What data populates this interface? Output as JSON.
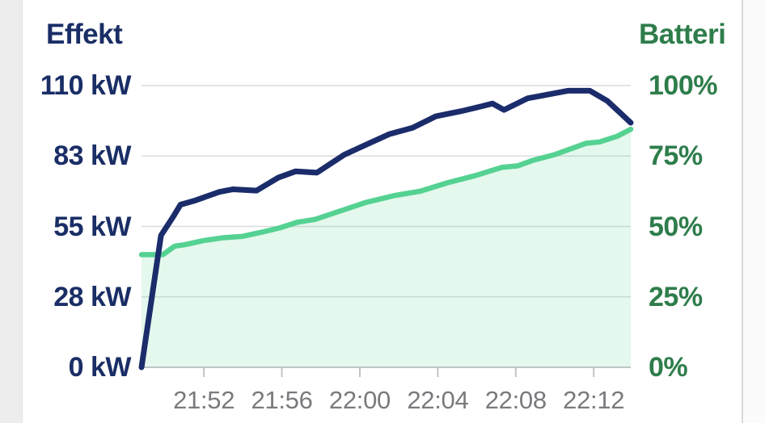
{
  "chart_data": {
    "type": "line",
    "dual_axis": true,
    "time_base": "21:48",
    "x_axis": {
      "start": 0.8,
      "end": 25.9,
      "ticks": [
        {
          "label": "21:52",
          "t": 4
        },
        {
          "label": "21:56",
          "t": 8
        },
        {
          "label": "22:00",
          "t": 12
        },
        {
          "label": "22:04",
          "t": 16
        },
        {
          "label": "22:08",
          "t": 20
        },
        {
          "label": "22:12",
          "t": 24
        }
      ]
    },
    "left_axis": {
      "title": "Effekt",
      "unit": "kW",
      "min": 0,
      "max": 110,
      "tick_labels": [
        "110 kW",
        "83 kW",
        "55 kW",
        "28 kW",
        "0 kW"
      ]
    },
    "right_axis": {
      "title": "Batteri",
      "unit": "%",
      "min": 0,
      "max": 100,
      "tick_labels": [
        "100%",
        "75%",
        "50%",
        "25%",
        "0%"
      ]
    },
    "series": [
      {
        "name": "Effekt",
        "axis": "left",
        "color": "#1b2c6b",
        "points": [
          [
            0.8,
            0
          ],
          [
            1.8,
            51.5
          ],
          [
            2.4,
            58.5
          ],
          [
            2.8,
            63.5
          ],
          [
            3.5,
            65
          ],
          [
            4.8,
            68.5
          ],
          [
            5.5,
            69.5
          ],
          [
            6.7,
            69
          ],
          [
            7.8,
            74
          ],
          [
            8.7,
            76.5
          ],
          [
            9.8,
            76
          ],
          [
            11.2,
            83
          ],
          [
            12.2,
            86.5
          ],
          [
            13.5,
            91
          ],
          [
            14.7,
            93.5
          ],
          [
            15.9,
            98
          ],
          [
            17.2,
            100
          ],
          [
            18.3,
            102
          ],
          [
            18.8,
            103
          ],
          [
            19.4,
            100.5
          ],
          [
            20.6,
            105
          ],
          [
            21.3,
            106
          ],
          [
            22.7,
            108
          ],
          [
            23.8,
            108
          ],
          [
            24.7,
            104
          ],
          [
            25.9,
            95.5
          ]
        ]
      },
      {
        "name": "Batteri",
        "axis": "right",
        "color": "#55d292",
        "area_fill": "rgba(85,210,146,0.16)",
        "points": [
          [
            0.8,
            40
          ],
          [
            1.9,
            40
          ],
          [
            2.5,
            43
          ],
          [
            3.0,
            43.5
          ],
          [
            4.0,
            45
          ],
          [
            5.0,
            46
          ],
          [
            6.0,
            46.5
          ],
          [
            7.0,
            48
          ],
          [
            7.9,
            49.5
          ],
          [
            8.8,
            51.5
          ],
          [
            9.7,
            52.5
          ],
          [
            11.0,
            55.5
          ],
          [
            12.3,
            58.5
          ],
          [
            13.8,
            61
          ],
          [
            15.1,
            62.5
          ],
          [
            16.5,
            65.5
          ],
          [
            17.9,
            68
          ],
          [
            19.3,
            71
          ],
          [
            20.1,
            71.5
          ],
          [
            20.9,
            73.5
          ],
          [
            22.0,
            75.5
          ],
          [
            22.8,
            77.5
          ],
          [
            23.6,
            79.5
          ],
          [
            24.3,
            80
          ],
          [
            25.2,
            82
          ],
          [
            25.9,
            84.5
          ]
        ]
      }
    ],
    "colors": {
      "grid": "#dcdcdf",
      "axis_line": "#c5c5c9",
      "tick": "#c2c2c6",
      "x_label": "#7a7a7e",
      "left_text": "#1a2e66",
      "right_text": "#2e7d4b"
    }
  }
}
